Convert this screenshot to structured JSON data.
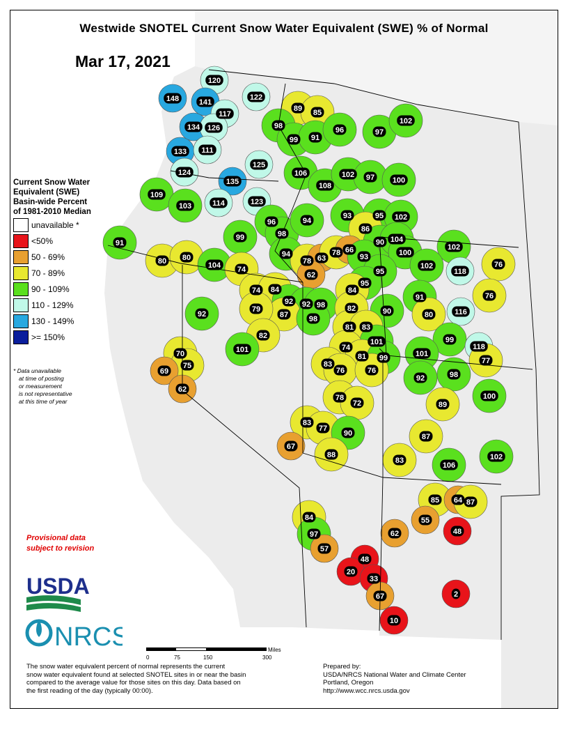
{
  "title": "Westwide SNOTEL Current Snow Water Equivalent (SWE) % of Normal",
  "date": "Mar 17, 2021",
  "legend": {
    "title_lines": [
      "Current Snow Water",
      "Equivalent (SWE)",
      "Basin-wide Percent",
      "of 1981-2010 Median"
    ],
    "items": [
      {
        "label": "unavailable *",
        "color": "#ffffff"
      },
      {
        "label": "<50%",
        "color": "#e8141a"
      },
      {
        "label": "50 - 69%",
        "color": "#e8a030"
      },
      {
        "label": "70 - 89%",
        "color": "#e8e830"
      },
      {
        "label": "90 - 109%",
        "color": "#5ae01e"
      },
      {
        "label": "110 - 129%",
        "color": "#c0f8e8"
      },
      {
        "label": "130 - 149%",
        "color": "#28a8e0"
      },
      {
        "label": ">= 150%",
        "color": "#0a1e9c"
      }
    ],
    "note_lines": [
      "*  Data unavailable",
      "at time of posting",
      "or measurement",
      "is not representative",
      "at this time of year"
    ]
  },
  "provisional_lines": [
    "Provisional data",
    "subject to revision"
  ],
  "logos": {
    "usda": "USDA",
    "nrcs": "NRCS"
  },
  "scale_bar": {
    "unit": "Miles",
    "ticks": [
      "0",
      "75",
      "150",
      "300"
    ]
  },
  "description_lines": [
    "The snow water equivalent percent of normal represents the current",
    "snow water equivalent found at selected SNOTEL sites in or near the basin",
    "compared to the average value for those sites on this day. Data based on",
    "the first reading of the day (typically 00:00)."
  ],
  "prepared_lines": [
    "Prepared by:",
    "USDA/NRCS National Water and Climate Center",
    "Portland, Oregon",
    "http://www.wcc.nrcs.usda.gov"
  ],
  "basin_values": [
    120,
    148,
    141,
    122,
    89,
    85,
    117,
    134,
    126,
    98,
    99,
    91,
    96,
    97,
    102,
    133,
    111,
    125,
    106,
    108,
    102,
    97,
    100,
    124,
    135,
    109,
    103,
    114,
    123,
    95,
    102,
    96,
    98,
    94,
    93,
    86,
    91,
    99,
    90,
    104,
    102,
    80,
    80,
    104,
    74,
    94,
    78,
    63,
    78,
    66,
    93,
    100,
    95,
    102,
    118,
    76,
    62,
    74,
    84,
    95,
    84,
    92,
    92,
    98,
    87,
    79,
    82,
    91,
    76,
    92,
    98,
    90,
    80,
    116,
    81,
    83,
    82,
    99,
    101,
    74,
    81,
    99,
    101,
    118,
    101,
    70,
    83,
    76,
    76,
    98,
    77,
    75,
    69,
    92,
    62,
    78,
    72,
    100,
    89,
    83,
    77,
    90,
    87,
    67,
    88,
    83,
    106,
    102,
    85,
    64,
    87,
    55,
    84,
    97,
    62,
    48,
    57,
    48,
    20,
    33,
    67,
    2,
    10
  ]
}
